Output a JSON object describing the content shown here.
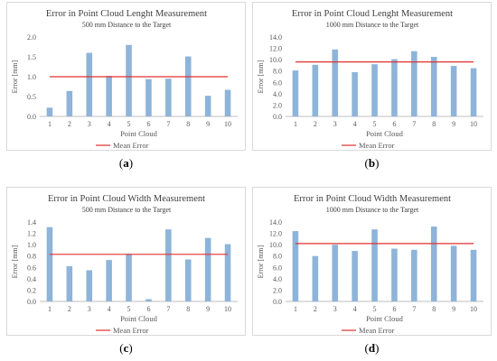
{
  "panels": [
    {
      "label_open": "(",
      "label_letter": "a",
      "label_close": ")"
    },
    {
      "label_open": "(",
      "label_letter": "b",
      "label_close": ")"
    },
    {
      "label_open": "(",
      "label_letter": "c",
      "label_close": ")"
    },
    {
      "label_open": "(",
      "label_letter": "d",
      "label_close": ")"
    }
  ],
  "chart_data": [
    {
      "type": "bar",
      "title": "Error in Point Cloud Lenght Measurement",
      "subtitle": "500 mm Distance to the Target",
      "xlabel": "Point Cloud",
      "ylabel": "Error [mm]",
      "categories": [
        "1",
        "2",
        "3",
        "4",
        "5",
        "6",
        "7",
        "8",
        "9",
        "10"
      ],
      "values": [
        0.22,
        0.64,
        1.6,
        1.02,
        1.8,
        0.94,
        0.95,
        1.51,
        0.52,
        0.67
      ],
      "mean": 1.0,
      "mean_label": "Mean Error",
      "ylim": [
        0,
        2.0
      ],
      "yticks": [
        "0.0",
        "0.5",
        "1.0",
        "1.5",
        "2.0"
      ],
      "bar_color": "#8eb4d9",
      "mean_color": "#e03030"
    },
    {
      "type": "bar",
      "title": "Error in Point Cloud Lenght Measurement",
      "subtitle": "1000 mm Distance to the Target",
      "xlabel": "Point Cloud",
      "ylabel": "Error [mm]",
      "categories": [
        "1",
        "2",
        "3",
        "4",
        "5",
        "6",
        "7",
        "8",
        "9",
        "10"
      ],
      "values": [
        8.1,
        9.1,
        11.8,
        7.8,
        9.2,
        10.1,
        11.5,
        10.5,
        8.9,
        8.5
      ],
      "mean": 9.6,
      "mean_label": "Mean Error",
      "ylim": [
        0,
        14.0
      ],
      "yticks": [
        "0.0",
        "2.0",
        "4.0",
        "6.0",
        "8.0",
        "10.0",
        "12.0",
        "14.0"
      ],
      "bar_color": "#8eb4d9",
      "mean_color": "#e03030"
    },
    {
      "type": "bar",
      "title": "Error in Point Cloud Width Measurement",
      "subtitle": "500 mm Distance to the Target",
      "xlabel": "Point Cloud",
      "ylabel": "Error [mm]",
      "categories": [
        "1",
        "2",
        "3",
        "4",
        "5",
        "6",
        "7",
        "8",
        "9",
        "10"
      ],
      "values": [
        1.31,
        0.62,
        0.55,
        0.73,
        0.84,
        0.04,
        1.27,
        0.74,
        1.12,
        1.01
      ],
      "mean": 0.83,
      "mean_label": "Mean Error",
      "ylim": [
        0,
        1.4
      ],
      "yticks": [
        "0.0",
        "0.2",
        "0.4",
        "0.6",
        "0.8",
        "1.0",
        "1.2",
        "1.4"
      ],
      "bar_color": "#8eb4d9",
      "mean_color": "#e03030"
    },
    {
      "type": "bar",
      "title": "Error in Point Cloud Width Measurement",
      "subtitle": "1000 mm Distance to the Target",
      "xlabel": "Point Cloud",
      "ylabel": "Error [mm]",
      "categories": [
        "1",
        "2",
        "3",
        "4",
        "5",
        "6",
        "7",
        "8",
        "9",
        "10"
      ],
      "values": [
        12.4,
        8.0,
        10.0,
        8.9,
        12.7,
        9.3,
        9.1,
        13.2,
        9.8,
        9.1
      ],
      "mean": 10.2,
      "mean_label": "Mean Error",
      "ylim": [
        0,
        14.0
      ],
      "yticks": [
        "0.0",
        "2.0",
        "4.0",
        "6.0",
        "8.0",
        "10.0",
        "12.0",
        "14.0"
      ],
      "bar_color": "#8eb4d9",
      "mean_color": "#e03030"
    }
  ]
}
